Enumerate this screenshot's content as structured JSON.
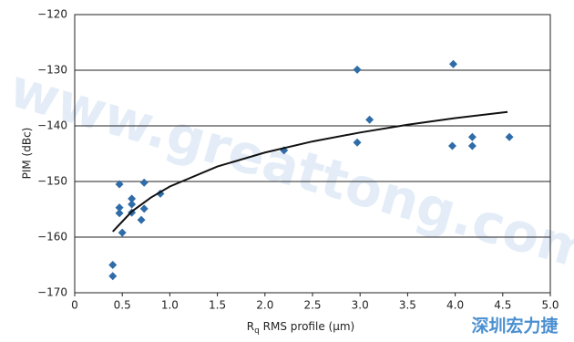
{
  "chart_data": {
    "type": "scatter",
    "xlabel_parts": [
      "R",
      "q",
      " RMS profile (µm)"
    ],
    "ylabel": "PIM (dBc)",
    "watermark": "www.greattong.com",
    "logo_text": "深圳宏力捷",
    "xlim": [
      0,
      5
    ],
    "ylim": [
      -170,
      -120
    ],
    "xticks": [
      0,
      0.5,
      {
        "value": 1,
        "label": "1.0"
      },
      1.5,
      {
        "value": 2,
        "label": "2.0"
      },
      2.5,
      {
        "value": 3,
        "label": "3.0"
      },
      3.5,
      {
        "value": 4,
        "label": "4.0"
      },
      4.5,
      {
        "value": 5,
        "label": "5.0"
      }
    ],
    "yticks": [
      {
        "value": -170,
        "label": "−170"
      },
      {
        "value": -160,
        "label": "−160"
      },
      {
        "value": -150,
        "label": "−150"
      },
      {
        "value": -140,
        "label": "−140"
      },
      {
        "value": -130,
        "label": "−130"
      },
      {
        "value": -120,
        "label": "−120"
      }
    ],
    "grid": true,
    "series": [
      {
        "kind": "points",
        "color": "#2f6ca8",
        "x": [
          0.4,
          0.4,
          0.47,
          0.47,
          0.47,
          0.5,
          0.6,
          0.6,
          0.6,
          0.7,
          0.73,
          0.73,
          0.9,
          2.2,
          2.97,
          2.97,
          3.1,
          3.98,
          3.97,
          4.18,
          4.18,
          4.57
        ],
        "values": [
          -165,
          -167,
          -150.5,
          -154.7,
          -155.7,
          -159.2,
          -153.1,
          -154.1,
          -155.6,
          -156.9,
          -154.9,
          -150.2,
          -152.2,
          -144.4,
          -129.9,
          -143,
          -138.9,
          -128.9,
          -143.6,
          -143.6,
          -142,
          -142
        ]
      },
      {
        "kind": "line",
        "color": "#111111",
        "x": [
          0.4,
          0.6,
          0.8,
          1.0,
          1.5,
          2.0,
          2.5,
          3.0,
          3.5,
          4.0,
          4.55
        ],
        "values": [
          -159,
          -155.4,
          -152.9,
          -150.9,
          -147.3,
          -144.8,
          -142.8,
          -141.2,
          -139.8,
          -138.6,
          -137.5
        ]
      }
    ]
  }
}
